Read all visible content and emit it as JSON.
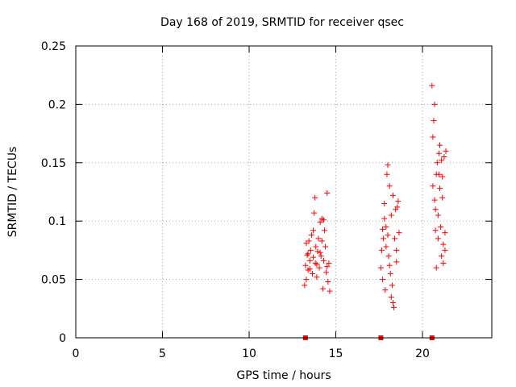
{
  "chart_data": {
    "type": "scatter",
    "title": "Day 168 of 2019, SRMTID for receiver qsec",
    "xlabel": "GPS time / hours",
    "ylabel": "SRMTID / TECUs",
    "xlim": [
      0,
      24
    ],
    "ylim": [
      0,
      0.25
    ],
    "xticks": [
      0,
      5,
      10,
      15,
      20
    ],
    "xtick_labels": [
      "0",
      "5",
      "10",
      "15",
      "20"
    ],
    "yticks": [
      0,
      0.05,
      0.1,
      0.15,
      0.2,
      0.25
    ],
    "ytick_labels": [
      "0",
      "0.05",
      "0.1",
      "0.15",
      "0.2",
      "0.25"
    ],
    "grid": true,
    "marker_color": "#ff0000",
    "series": [
      {
        "marker": "plus",
        "points": [
          [
            13.2,
            0.045
          ],
          [
            13.25,
            0.062
          ],
          [
            13.3,
            0.05
          ],
          [
            13.35,
            0.071
          ],
          [
            13.4,
            0.058
          ],
          [
            13.45,
            0.083
          ],
          [
            13.5,
            0.066
          ],
          [
            13.55,
            0.075
          ],
          [
            13.6,
            0.088
          ],
          [
            13.65,
            0.055
          ],
          [
            13.7,
            0.069
          ],
          [
            13.75,
            0.107
          ],
          [
            13.8,
            0.12
          ],
          [
            13.82,
            0.064
          ],
          [
            13.85,
            0.078
          ],
          [
            13.9,
            0.052
          ],
          [
            13.95,
            0.074
          ],
          [
            14.0,
            0.085
          ],
          [
            14.05,
            0.06
          ],
          [
            14.1,
            0.099
          ],
          [
            14.15,
            0.07
          ],
          [
            14.2,
            0.102
          ],
          [
            14.25,
            0.042
          ],
          [
            14.3,
            0.066
          ],
          [
            14.35,
            0.092
          ],
          [
            14.4,
            0.078
          ],
          [
            14.45,
            0.056
          ],
          [
            14.5,
            0.124
          ],
          [
            14.55,
            0.048
          ],
          [
            14.6,
            0.064
          ],
          [
            14.65,
            0.04
          ],
          [
            13.3,
            0.081
          ],
          [
            13.5,
            0.059
          ],
          [
            13.7,
            0.092
          ],
          [
            13.9,
            0.063
          ],
          [
            14.1,
            0.073
          ],
          [
            14.3,
            0.101
          ],
          [
            14.5,
            0.061
          ],
          [
            13.4,
            0.072
          ],
          [
            14.2,
            0.083
          ],
          [
            17.6,
            0.06
          ],
          [
            17.65,
            0.075
          ],
          [
            17.7,
            0.05
          ],
          [
            17.75,
            0.085
          ],
          [
            17.8,
            0.115
          ],
          [
            17.85,
            0.041
          ],
          [
            17.9,
            0.095
          ],
          [
            17.95,
            0.14
          ],
          [
            18.0,
            0.148
          ],
          [
            18.05,
            0.07
          ],
          [
            18.1,
            0.13
          ],
          [
            18.15,
            0.055
          ],
          [
            18.2,
            0.105
          ],
          [
            18.25,
            0.045
          ],
          [
            18.3,
            0.03
          ],
          [
            18.35,
            0.026
          ],
          [
            18.4,
            0.085
          ],
          [
            18.45,
            0.11
          ],
          [
            18.5,
            0.065
          ],
          [
            18.55,
            0.112
          ],
          [
            18.6,
            0.117
          ],
          [
            18.65,
            0.09
          ],
          [
            17.7,
            0.093
          ],
          [
            17.9,
            0.078
          ],
          [
            18.1,
            0.062
          ],
          [
            18.3,
            0.122
          ],
          [
            18.5,
            0.075
          ],
          [
            17.8,
            0.102
          ],
          [
            18.0,
            0.088
          ],
          [
            18.2,
            0.035
          ],
          [
            20.55,
            0.216
          ],
          [
            20.6,
            0.13
          ],
          [
            20.65,
            0.186
          ],
          [
            20.7,
            0.2
          ],
          [
            20.75,
            0.11
          ],
          [
            20.8,
            0.06
          ],
          [
            20.85,
            0.15
          ],
          [
            20.9,
            0.085
          ],
          [
            20.95,
            0.14
          ],
          [
            21.0,
            0.165
          ],
          [
            21.05,
            0.095
          ],
          [
            21.1,
            0.07
          ],
          [
            21.15,
            0.12
          ],
          [
            21.2,
            0.08
          ],
          [
            21.25,
            0.155
          ],
          [
            21.3,
            0.09
          ],
          [
            21.35,
            0.16
          ],
          [
            20.6,
            0.172
          ],
          [
            20.7,
            0.118
          ],
          [
            20.8,
            0.14
          ],
          [
            20.9,
            0.105
          ],
          [
            21.0,
            0.128
          ],
          [
            21.1,
            0.152
          ],
          [
            21.2,
            0.064
          ],
          [
            21.3,
            0.075
          ],
          [
            20.75,
            0.092
          ],
          [
            20.95,
            0.158
          ],
          [
            21.15,
            0.138
          ]
        ]
      },
      {
        "marker": "square",
        "points": [
          [
            13.25,
            0.0
          ],
          [
            17.6,
            0.0
          ],
          [
            20.55,
            0.0
          ]
        ]
      }
    ]
  }
}
